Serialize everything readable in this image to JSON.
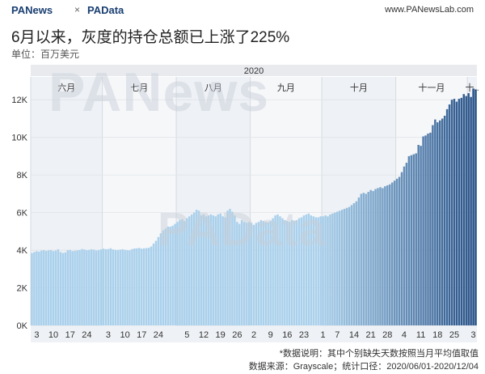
{
  "header": {
    "brand_left": "PANews",
    "brand_sep": "×",
    "brand_right": "PAData",
    "site": "www.PANewsLab.com"
  },
  "title": "6月以来，灰度的持仓总额已上涨了225%",
  "unit_label": "单位：百万美元",
  "footnote": {
    "line1": "*数据说明：其中个别缺失天数按照当月平均值取值",
    "line2": "数据来源：Grayscale；统计口径：2020/06/01-2020/12/04"
  },
  "watermark": {
    "text1": "PANews",
    "text2": "PAData"
  },
  "colors": {
    "bar_light": "#a9d0ec",
    "bar_dark": "#244f86",
    "month_band_odd": "#eef1f5",
    "month_band_even": "#f6f7f9",
    "year_band": "#e8eaee"
  },
  "chart_data": {
    "type": "bar",
    "title": "6月以来，灰度的持仓总额已上涨了225%",
    "ylabel": "单位：百万美元",
    "year": "2020",
    "ylim": [
      0,
      13000
    ],
    "yticks": [
      {
        "value": 0,
        "label": "0K"
      },
      {
        "value": 2000,
        "label": "2K"
      },
      {
        "value": 4000,
        "label": "4K"
      },
      {
        "value": 6000,
        "label": "6K"
      },
      {
        "value": 8000,
        "label": "8K"
      },
      {
        "value": 10000,
        "label": "10K"
      },
      {
        "value": 12000,
        "label": "12K"
      }
    ],
    "months": [
      {
        "label": "六月",
        "start": 0,
        "days": 30
      },
      {
        "label": "七月",
        "start": 30,
        "days": 31
      },
      {
        "label": "八月",
        "start": 61,
        "days": 31
      },
      {
        "label": "九月",
        "start": 92,
        "days": 30
      },
      {
        "label": "十月",
        "start": 122,
        "days": 31
      },
      {
        "label": "十一月",
        "start": 153,
        "days": 30
      },
      {
        "label": "十..",
        "start": 183,
        "days": 4
      }
    ],
    "xticks": [
      {
        "index": 2,
        "label": "3"
      },
      {
        "index": 9,
        "label": "10"
      },
      {
        "index": 16,
        "label": "17"
      },
      {
        "index": 23,
        "label": "24"
      },
      {
        "index": 32,
        "label": "3"
      },
      {
        "index": 39,
        "label": "10"
      },
      {
        "index": 46,
        "label": "17"
      },
      {
        "index": 53,
        "label": "24"
      },
      {
        "index": 65,
        "label": "5"
      },
      {
        "index": 72,
        "label": "12"
      },
      {
        "index": 79,
        "label": "19"
      },
      {
        "index": 86,
        "label": "26"
      },
      {
        "index": 93,
        "label": "2"
      },
      {
        "index": 100,
        "label": "9"
      },
      {
        "index": 107,
        "label": "16"
      },
      {
        "index": 114,
        "label": "23"
      },
      {
        "index": 122,
        "label": "1"
      },
      {
        "index": 128,
        "label": "7"
      },
      {
        "index": 135,
        "label": "14"
      },
      {
        "index": 142,
        "label": "21"
      },
      {
        "index": 149,
        "label": "28"
      },
      {
        "index": 156,
        "label": "4"
      },
      {
        "index": 163,
        "label": "11"
      },
      {
        "index": 170,
        "label": "18"
      },
      {
        "index": 177,
        "label": "25"
      },
      {
        "index": 185,
        "label": "3"
      }
    ],
    "x": [
      "06/01",
      "06/02",
      "06/03",
      "06/04",
      "06/05",
      "06/06",
      "06/07",
      "06/08",
      "06/09",
      "06/10",
      "06/11",
      "06/12",
      "06/13",
      "06/14",
      "06/15",
      "06/16",
      "06/17",
      "06/18",
      "06/19",
      "06/20",
      "06/21",
      "06/22",
      "06/23",
      "06/24",
      "06/25",
      "06/26",
      "06/27",
      "06/28",
      "06/29",
      "06/30",
      "07/01",
      "07/02",
      "07/03",
      "07/04",
      "07/05",
      "07/06",
      "07/07",
      "07/08",
      "07/09",
      "07/10",
      "07/11",
      "07/12",
      "07/13",
      "07/14",
      "07/15",
      "07/16",
      "07/17",
      "07/18",
      "07/19",
      "07/20",
      "07/21",
      "07/22",
      "07/23",
      "07/24",
      "07/25",
      "07/26",
      "07/27",
      "07/28",
      "07/29",
      "07/30",
      "07/31",
      "08/01",
      "08/02",
      "08/03",
      "08/04",
      "08/05",
      "08/06",
      "08/07",
      "08/08",
      "08/09",
      "08/10",
      "08/11",
      "08/12",
      "08/13",
      "08/14",
      "08/15",
      "08/16",
      "08/17",
      "08/18",
      "08/19",
      "08/20",
      "08/21",
      "08/22",
      "08/23",
      "08/24",
      "08/25",
      "08/26",
      "08/27",
      "08/28",
      "08/29",
      "08/30",
      "08/31",
      "09/01",
      "09/02",
      "09/03",
      "09/04",
      "09/05",
      "09/06",
      "09/07",
      "09/08",
      "09/09",
      "09/10",
      "09/11",
      "09/12",
      "09/13",
      "09/14",
      "09/15",
      "09/16",
      "09/17",
      "09/18",
      "09/19",
      "09/20",
      "09/21",
      "09/22",
      "09/23",
      "09/24",
      "09/25",
      "09/26",
      "09/27",
      "09/28",
      "09/29",
      "09/30",
      "10/01",
      "10/02",
      "10/03",
      "10/04",
      "10/05",
      "10/06",
      "10/07",
      "10/08",
      "10/09",
      "10/10",
      "10/11",
      "10/12",
      "10/13",
      "10/14",
      "10/15",
      "10/16",
      "10/17",
      "10/18",
      "10/19",
      "10/20",
      "10/21",
      "10/22",
      "10/23",
      "10/24",
      "10/25",
      "10/26",
      "10/27",
      "10/28",
      "10/29",
      "10/30",
      "10/31",
      "11/01",
      "11/02",
      "11/03",
      "11/04",
      "11/05",
      "11/06",
      "11/07",
      "11/08",
      "11/09",
      "11/10",
      "11/11",
      "11/12",
      "11/13",
      "11/14",
      "11/15",
      "11/16",
      "11/17",
      "11/18",
      "11/19",
      "11/20",
      "11/21",
      "11/22",
      "11/23",
      "11/24",
      "11/25",
      "11/26",
      "11/27",
      "11/28",
      "11/29",
      "11/30",
      "12/01",
      "12/02",
      "12/03",
      "12/04"
    ],
    "values": [
      3850,
      3900,
      3950,
      3920,
      3980,
      4000,
      3960,
      3990,
      4010,
      3950,
      3980,
      4050,
      3900,
      3850,
      3880,
      4000,
      4020,
      3950,
      3970,
      3990,
      4010,
      4060,
      4040,
      4000,
      4020,
      4050,
      4030,
      3980,
      4010,
      4040,
      4080,
      4050,
      4060,
      4100,
      4040,
      4020,
      4010,
      4030,
      4050,
      4020,
      4000,
      3990,
      4060,
      4090,
      4100,
      4120,
      4080,
      4100,
      4110,
      4130,
      4200,
      4350,
      4500,
      4700,
      4900,
      5050,
      5150,
      5250,
      5250,
      5300,
      5400,
      5500,
      5600,
      5650,
      5550,
      5700,
      5800,
      5900,
      6000,
      6150,
      6100,
      5850,
      5900,
      5800,
      5850,
      5900,
      5850,
      5800,
      5900,
      5950,
      5800,
      5750,
      6100,
      6200,
      6050,
      5850,
      5500,
      5400,
      5600,
      5500,
      5450,
      5500,
      5450,
      5350,
      5450,
      5500,
      5600,
      5550,
      5500,
      5480,
      5550,
      5700,
      5850,
      5900,
      5800,
      5700,
      5600,
      5550,
      5500,
      5600,
      5550,
      5600,
      5700,
      5750,
      5850,
      5900,
      5950,
      5850,
      5800,
      5750,
      5750,
      5800,
      5800,
      5850,
      5800,
      5900,
      5950,
      6000,
      6050,
      6100,
      6150,
      6200,
      6250,
      6300,
      6400,
      6500,
      6600,
      6800,
      7000,
      7050,
      7000,
      7100,
      7200,
      7150,
      7250,
      7300,
      7350,
      7300,
      7400,
      7450,
      7500,
      7600,
      7700,
      7800,
      7900,
      8150,
      8450,
      8650,
      9000,
      9050,
      9100,
      9150,
      9600,
      9550,
      10050,
      10100,
      10200,
      10250,
      10650,
      10950,
      10800,
      10900,
      11000,
      11150,
      11500,
      11750,
      12000,
      12050,
      11900,
      12050,
      12100,
      12300,
      12200,
      12350,
      12150,
      12600,
      12550
    ]
  }
}
